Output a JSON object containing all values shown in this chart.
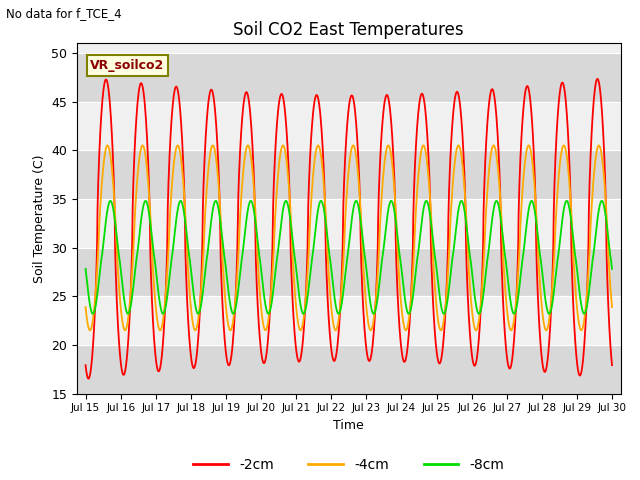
{
  "title": "Soil CO2 East Temperatures",
  "xlabel": "Time",
  "ylabel": "Soil Temperature (C)",
  "ylim": [
    15,
    51
  ],
  "yticks": [
    15,
    20,
    25,
    30,
    35,
    40,
    45,
    50
  ],
  "note": "No data for f_TCE_4",
  "legend_label": "VR_soilco2",
  "series_labels": [
    "-2cm",
    "-4cm",
    "-8cm"
  ],
  "series_colors": [
    "#ff0000",
    "#ffaa00",
    "#00dd00"
  ],
  "x_start_day": 15,
  "x_end_day": 30,
  "x_tick_days": [
    15,
    16,
    17,
    18,
    19,
    20,
    21,
    22,
    23,
    24,
    25,
    26,
    27,
    28,
    29,
    30
  ],
  "background_color": "#ffffff",
  "plot_bg_light": "#d8d8d8",
  "plot_bg_white": "#f0f0f0",
  "band_edges": [
    15,
    20,
    25,
    30,
    35,
    40,
    45,
    50,
    51
  ],
  "band_colors": [
    "#d8d8d8",
    "#f0f0f0",
    "#d8d8d8",
    "#f0f0f0",
    "#d8d8d8",
    "#f0f0f0",
    "#d8d8d8",
    "#f0f0f0"
  ]
}
